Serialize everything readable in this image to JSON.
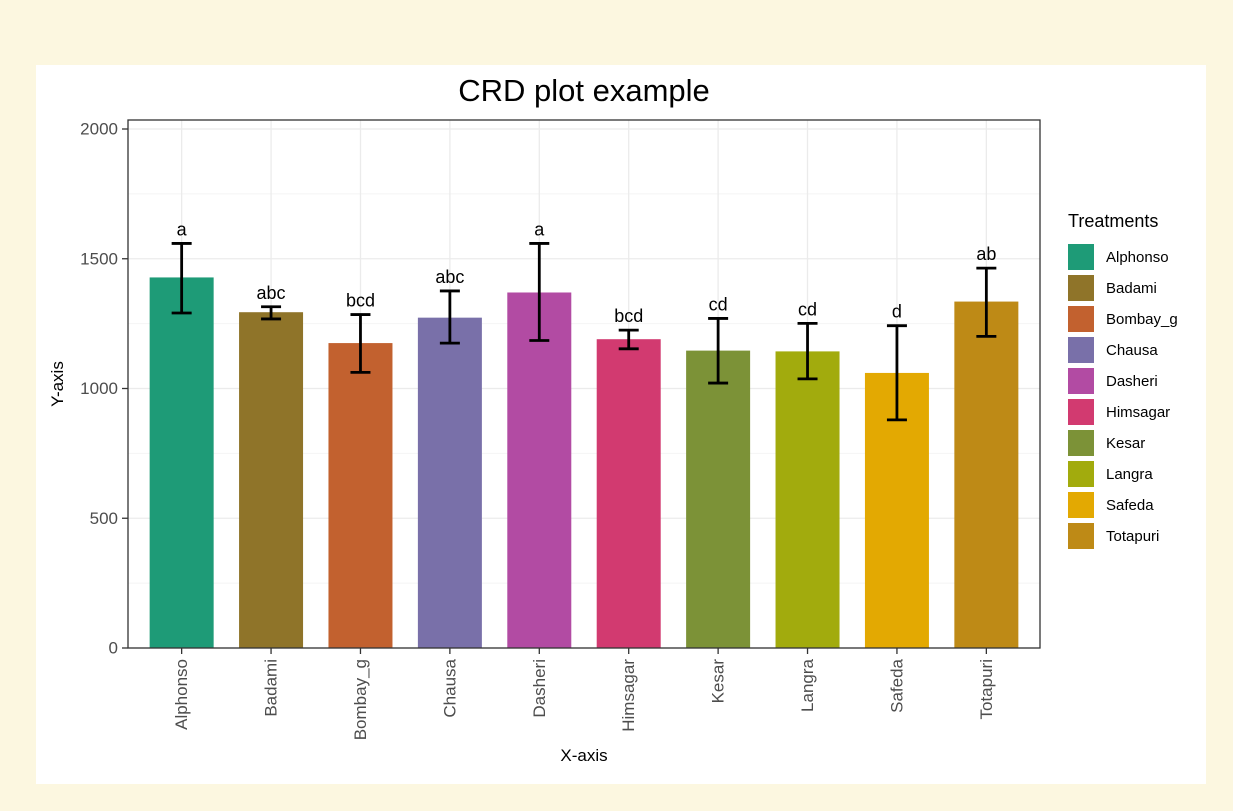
{
  "page": {
    "background_color": "#FCF7E0",
    "panel_border_color": "#333333",
    "grid_major_color": "#EBEBEB",
    "grid_minor_color": "#F4F4F4",
    "tick_label_color": "#4D4D4D",
    "errorbar_color": "#000000"
  },
  "chart_data": {
    "type": "bar",
    "title": "CRD plot example",
    "xlabel": "X-axis",
    "ylabel": "Y-axis",
    "legend_title": "Treatments",
    "legend_position": "right",
    "grid": true,
    "ylim": [
      0,
      2035
    ],
    "yticks": [
      0,
      500,
      1000,
      1500,
      2000
    ],
    "yticks_minor": [
      250,
      750,
      1250,
      1750
    ],
    "categories": [
      "Alphonso",
      "Badami",
      "Bombay_g",
      "Chausa",
      "Dasheri",
      "Himsagar",
      "Kesar",
      "Langra",
      "Safeda",
      "Totapuri"
    ],
    "values": [
      1428,
      1294,
      1175,
      1273,
      1370,
      1190,
      1146,
      1143,
      1060,
      1335
    ],
    "error_low": [
      1291,
      1268,
      1062,
      1175,
      1185,
      1153,
      1021,
      1037,
      879,
      1201
    ],
    "error_high": [
      1559,
      1315,
      1285,
      1376,
      1559,
      1225,
      1270,
      1251,
      1242,
      1464
    ],
    "sig_letters": [
      "a",
      "abc",
      "bcd",
      "abc",
      "a",
      "bcd",
      "cd",
      "cd",
      "d",
      "ab"
    ],
    "colors": [
      "#1E9B77",
      "#8F7429",
      "#C2612F",
      "#7970A9",
      "#B24BA3",
      "#D23A70",
      "#7C9237",
      "#A2AB0D",
      "#E3A902",
      "#BE8A16"
    ]
  }
}
